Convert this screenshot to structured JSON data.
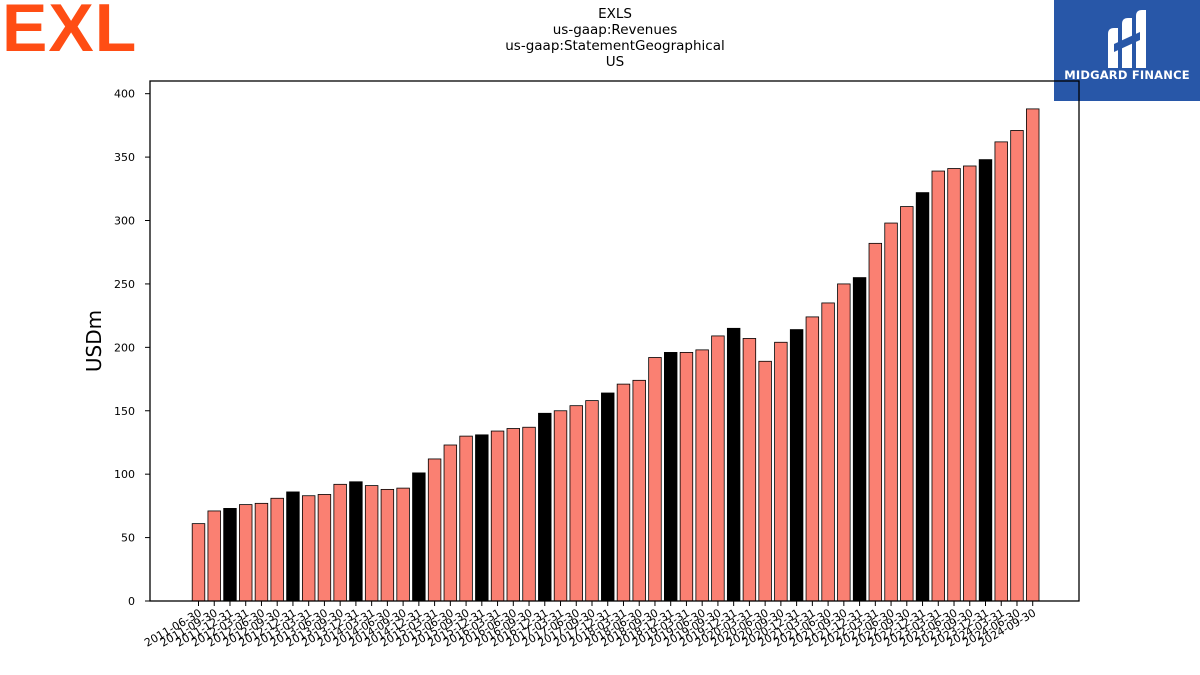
{
  "header": {
    "logo_text": "EXL",
    "title_lines": [
      "EXLS",
      "us-gaap:Revenues",
      "us-gaap:StatementGeographical",
      "US"
    ],
    "brand_text": "MIDGARD FINANCE"
  },
  "colors": {
    "bar_default": "#fa8072",
    "bar_highlight": "#000000",
    "bar_edge": "#000000",
    "logo_orange": "#ff4d14",
    "brand_blue": "#2857a8"
  },
  "chart_data": {
    "type": "bar",
    "title": "EXLS\nus-gaap:Revenues\nus-gaap:StatementGeographical\nUS",
    "xlabel": "",
    "ylabel": "USDm",
    "ylim": [
      0,
      410
    ],
    "yticks": [
      0,
      50,
      100,
      150,
      200,
      250,
      300,
      350,
      400
    ],
    "grid": false,
    "legend": "none",
    "categories": [
      "2011-06-30",
      "2011-09-30",
      "2011-12-31",
      "2012-03-31",
      "2012-06-30",
      "2012-09-30",
      "2012-12-31",
      "2013-03-31",
      "2013-06-30",
      "2013-09-30",
      "2013-12-31",
      "2014-03-31",
      "2014-06-30",
      "2014-09-30",
      "2014-12-31",
      "2015-03-31",
      "2015-06-30",
      "2015-09-30",
      "2015-12-31",
      "2016-03-31",
      "2016-06-30",
      "2016-09-30",
      "2016-12-31",
      "2017-03-31",
      "2017-06-30",
      "2017-09-30",
      "2017-12-31",
      "2018-03-31",
      "2018-06-30",
      "2018-09-30",
      "2018-12-31",
      "2019-03-31",
      "2019-06-30",
      "2019-09-30",
      "2019-12-31",
      "2020-03-31",
      "2020-06-30",
      "2020-09-30",
      "2020-12-31",
      "2021-03-31",
      "2021-06-30",
      "2021-09-30",
      "2021-12-31",
      "2022-03-31",
      "2022-06-30",
      "2022-09-30",
      "2022-12-31",
      "2023-03-31",
      "2023-06-30",
      "2023-09-30",
      "2023-12-31",
      "2024-03-31",
      "2024-06-30",
      "2024-09-30"
    ],
    "values": [
      61,
      71,
      73,
      76,
      77,
      81,
      86,
      83,
      84,
      92,
      94,
      91,
      88,
      89,
      101,
      112,
      123,
      130,
      131,
      134,
      136,
      137,
      148,
      150,
      154,
      158,
      164,
      171,
      174,
      192,
      196,
      196,
      198,
      209,
      215,
      207,
      189,
      204,
      214,
      224,
      235,
      250,
      255,
      282,
      298,
      311,
      322,
      339,
      341,
      343,
      348,
      362,
      371,
      388
    ],
    "highlight": [
      false,
      false,
      true,
      false,
      false,
      false,
      true,
      false,
      false,
      false,
      true,
      false,
      false,
      false,
      true,
      false,
      false,
      false,
      true,
      false,
      false,
      false,
      true,
      false,
      false,
      false,
      true,
      false,
      false,
      false,
      true,
      false,
      false,
      false,
      true,
      false,
      false,
      false,
      true,
      false,
      false,
      false,
      true,
      false,
      false,
      false,
      true,
      false,
      false,
      false,
      true,
      false,
      false,
      false
    ]
  }
}
